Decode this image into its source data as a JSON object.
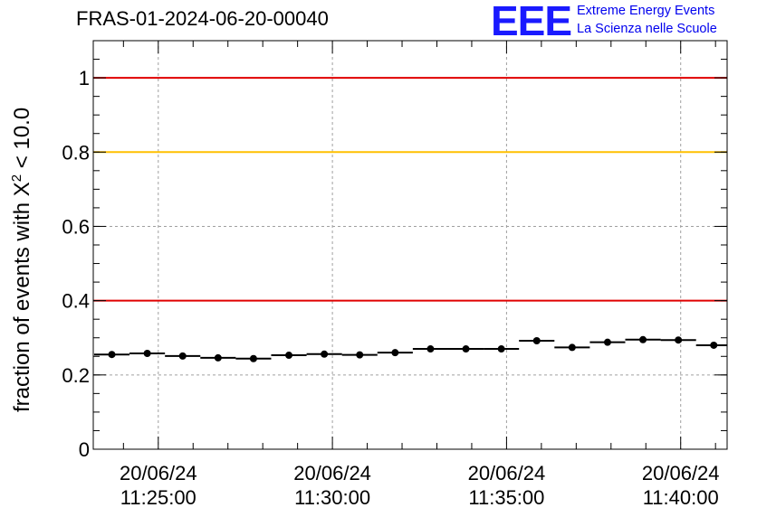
{
  "title": "FRAS-01-2024-06-20-00040",
  "logo": {
    "mark": "EEE",
    "line1": "Extreme Energy Events",
    "line2": "La Scienza nelle Scuole"
  },
  "colors": {
    "logo": "#1a1aff",
    "red_threshold": "#e00000",
    "yellow_threshold": "#ffc000",
    "points": "#000000",
    "grid": "#a0a0a0"
  },
  "chart_data": {
    "type": "scatter",
    "ylabel_prefix": "fraction of events with ",
    "ylabel_symbol": "X",
    "ylabel_sup": "2",
    "ylabel_suffix": " < 10.0",
    "ylim": [
      0,
      1.1
    ],
    "yticks": [
      0,
      0.2,
      0.4,
      0.6,
      0.8,
      1
    ],
    "ytick_labels": [
      "0",
      "0.2",
      "0.4",
      "0.6",
      "0.8",
      "1"
    ],
    "xlim": [
      "11:23:08",
      "11:41:20"
    ],
    "xticks": [
      {
        "time": "11:25:00",
        "date": "20/06/24",
        "label": "11:25:00"
      },
      {
        "time": "11:30:00",
        "date": "20/06/24",
        "label": "11:30:00"
      },
      {
        "time": "11:35:00",
        "date": "20/06/24",
        "label": "11:35:00"
      },
      {
        "time": "11:40:00",
        "date": "20/06/24",
        "label": "11:40:00"
      }
    ],
    "grid": true,
    "bin_width_s": 61,
    "reference_lines": [
      {
        "y": 1.0,
        "color": "#e00000"
      },
      {
        "y": 0.8,
        "color": "#ffc000"
      },
      {
        "y": 0.4,
        "color": "#e00000"
      }
    ],
    "points": [
      {
        "x": "11:23:40",
        "y": 0.255
      },
      {
        "x": "11:24:41",
        "y": 0.258
      },
      {
        "x": "11:25:42",
        "y": 0.251
      },
      {
        "x": "11:26:43",
        "y": 0.246
      },
      {
        "x": "11:27:44",
        "y": 0.244
      },
      {
        "x": "11:28:45",
        "y": 0.253
      },
      {
        "x": "11:29:46",
        "y": 0.256
      },
      {
        "x": "11:30:47",
        "y": 0.254
      },
      {
        "x": "11:31:48",
        "y": 0.26
      },
      {
        "x": "11:32:49",
        "y": 0.27
      },
      {
        "x": "11:33:50",
        "y": 0.27
      },
      {
        "x": "11:34:51",
        "y": 0.27
      },
      {
        "x": "11:35:52",
        "y": 0.292
      },
      {
        "x": "11:36:53",
        "y": 0.274
      },
      {
        "x": "11:37:54",
        "y": 0.288
      },
      {
        "x": "11:38:55",
        "y": 0.295
      },
      {
        "x": "11:39:56",
        "y": 0.294
      },
      {
        "x": "11:40:57",
        "y": 0.28
      }
    ]
  }
}
